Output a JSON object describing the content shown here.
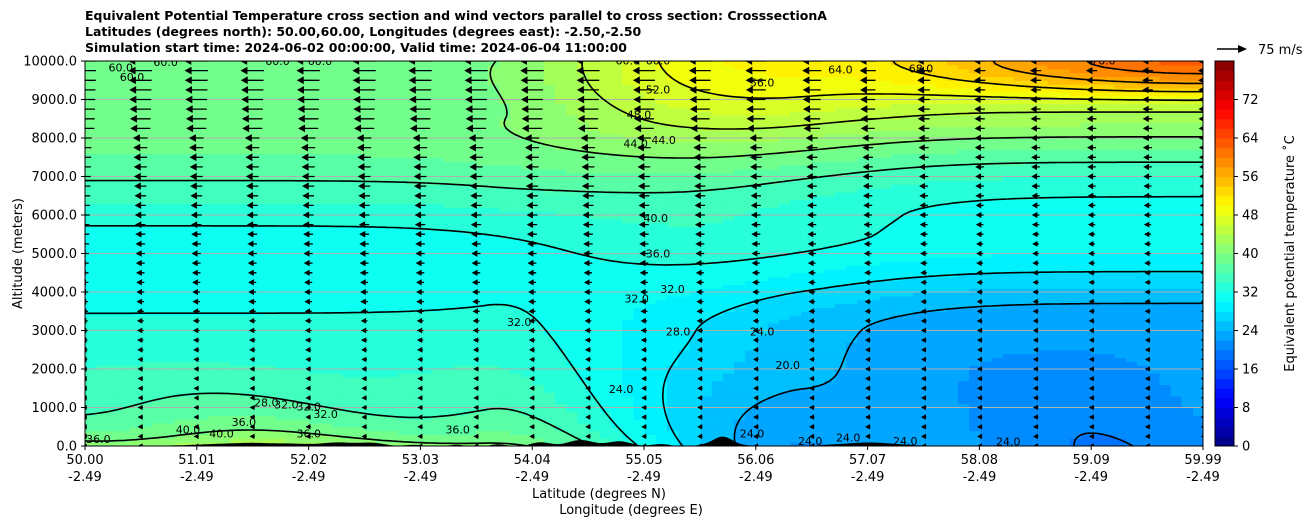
{
  "title_lines": [
    "Equivalent Potential Temperature cross section and wind vectors parallel to cross section: CrosssectionA",
    "Latitudes (degrees north): 50.00,60.00, Longitudes (degrees east): -2.50,-2.50",
    "Simulation start time: 2024-06-02 00:00:00, Valid time: 2024-06-04 11:00:00"
  ],
  "quiver_key": {
    "label": "75 m/s",
    "speed": 75
  },
  "colors": {
    "terrain": "#000000",
    "contour": "#000000",
    "grid": "#b0b0b0"
  },
  "chart_data": {
    "type": "heatmap",
    "subtype": "filled contour cross-section with line contours and wind vectors",
    "xlabel": "Latitude (degrees N)",
    "xlabel2": "Longitude (degrees E)",
    "ylabel": "Altitude (meters)",
    "x_tick_labels": [
      [
        "50.00",
        "-2.49"
      ],
      [
        "51.01",
        "-2.49"
      ],
      [
        "52.02",
        "-2.49"
      ],
      [
        "53.03",
        "-2.49"
      ],
      [
        "54.04",
        "-2.49"
      ],
      [
        "55.05",
        "-2.49"
      ],
      [
        "56.06",
        "-2.49"
      ],
      [
        "57.07",
        "-2.49"
      ],
      [
        "58.08",
        "-2.49"
      ],
      [
        "59.09",
        "-2.49"
      ],
      [
        "59.99",
        "-2.49"
      ]
    ],
    "y_tick_labels": [
      "0.0",
      "1000.0",
      "2000.0",
      "3000.0",
      "4000.0",
      "5000.0",
      "6000.0",
      "7000.0",
      "8000.0",
      "9000.0",
      "10000.0"
    ],
    "xlim": [
      50.0,
      59.99
    ],
    "ylim": [
      0,
      10000
    ],
    "grid": "horizontal",
    "colorbar": {
      "label": "Equivalent potential temperature ˚C",
      "range": [
        0,
        80
      ],
      "step": 2,
      "tick_labels": [
        "0",
        "8",
        "16",
        "24",
        "32",
        "40",
        "48",
        "56",
        "64",
        "72"
      ],
      "colormap": "jet"
    },
    "contour_labels": [
      {
        "text": "60.0",
        "lat": 50.32,
        "alt": 9800
      },
      {
        "text": "60.0",
        "lat": 50.42,
        "alt": 9560
      },
      {
        "text": "60.0",
        "lat": 50.72,
        "alt": 9950
      },
      {
        "text": "60.0",
        "lat": 51.72,
        "alt": 9980
      },
      {
        "text": "60.0",
        "lat": 52.1,
        "alt": 9980
      },
      {
        "text": "60.0",
        "lat": 54.85,
        "alt": 9990
      },
      {
        "text": "60.0",
        "lat": 55.12,
        "alt": 9990
      },
      {
        "text": "64.0",
        "lat": 56.75,
        "alt": 9750
      },
      {
        "text": "68.0",
        "lat": 57.47,
        "alt": 9780
      },
      {
        "text": "76.0",
        "lat": 59.1,
        "alt": 9990
      },
      {
        "text": "56.0",
        "lat": 56.05,
        "alt": 9420
      },
      {
        "text": "52.0",
        "lat": 55.12,
        "alt": 9240
      },
      {
        "text": "48.0",
        "lat": 54.95,
        "alt": 8580
      },
      {
        "text": "44.0",
        "lat": 54.92,
        "alt": 7830
      },
      {
        "text": "44.0",
        "lat": 55.17,
        "alt": 7920
      },
      {
        "text": "40.0",
        "lat": 55.1,
        "alt": 5900
      },
      {
        "text": "36.0",
        "lat": 55.12,
        "alt": 4980
      },
      {
        "text": "32.0",
        "lat": 55.25,
        "alt": 4050
      },
      {
        "text": "32.0",
        "lat": 54.93,
        "alt": 3800
      },
      {
        "text": "32.0",
        "lat": 53.88,
        "alt": 3200
      },
      {
        "text": "28.0",
        "lat": 55.3,
        "alt": 2950
      },
      {
        "text": "24.0",
        "lat": 56.05,
        "alt": 2950
      },
      {
        "text": "24.0",
        "lat": 54.79,
        "alt": 1450
      },
      {
        "text": "20.0",
        "lat": 56.28,
        "alt": 2080
      },
      {
        "text": "32.0",
        "lat": 52.0,
        "alt": 1000
      },
      {
        "text": "28.0",
        "lat": 51.62,
        "alt": 1100
      },
      {
        "text": "32.0",
        "lat": 51.8,
        "alt": 1050
      },
      {
        "text": "32.0",
        "lat": 52.15,
        "alt": 800
      },
      {
        "text": "36.0",
        "lat": 51.42,
        "alt": 600
      },
      {
        "text": "36.0",
        "lat": 52.0,
        "alt": 300
      },
      {
        "text": "36.0",
        "lat": 53.33,
        "alt": 400
      },
      {
        "text": "40.0",
        "lat": 50.92,
        "alt": 400
      },
      {
        "text": "40.0",
        "lat": 51.22,
        "alt": 300
      },
      {
        "text": "36.0",
        "lat": 50.12,
        "alt": 150
      },
      {
        "text": "24.0",
        "lat": 56.48,
        "alt": 100
      },
      {
        "text": "24.0",
        "lat": 56.82,
        "alt": 200
      },
      {
        "text": "24.0",
        "lat": 58.25,
        "alt": 90
      },
      {
        "text": "24.0",
        "lat": 55.96,
        "alt": 300
      },
      {
        "text": "24.0",
        "lat": 57.33,
        "alt": 100
      }
    ]
  }
}
